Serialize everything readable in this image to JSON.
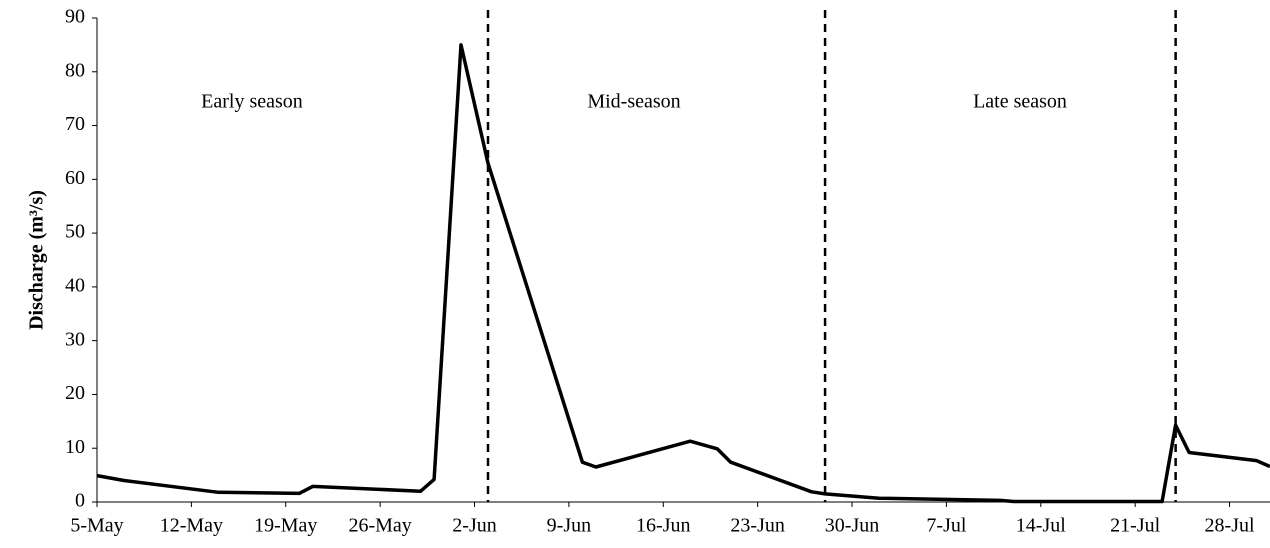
{
  "chart_data": {
    "type": "line",
    "y_label": "Discharge (m³/s)",
    "annotations": [
      "Early season",
      "Mid-season",
      "Late season"
    ],
    "boundaries": [
      "3-Jun",
      "28-Jun",
      "24-Jul"
    ],
    "x": [
      "5-May",
      "7-May",
      "14-May",
      "20-May",
      "21-May",
      "29-May",
      "30-May",
      "1-Jun",
      "3-Jun",
      "10-Jun",
      "11-Jun",
      "18-Jun",
      "20-Jun",
      "21-Jun",
      "27-Jun",
      "28-Jun",
      "2-Jul",
      "11-Jul",
      "12-Jul",
      "23-Jul",
      "24-Jul",
      "25-Jul",
      "30-Jul",
      "31-Jul"
    ],
    "values": [
      4.9,
      4.0,
      1.8,
      1.6,
      2.9,
      2.0,
      4.2,
      85,
      63,
      7.4,
      6.5,
      11.3,
      9.9,
      7.4,
      1.9,
      1.5,
      0.7,
      0.3,
      0.1,
      0.1,
      14.3,
      9.2,
      7.7,
      6.6
    ],
    "color": "#000000",
    "xlim": [
      "5-May",
      "31-Jul"
    ],
    "xticks": [
      "5-May",
      "12-May",
      "19-May",
      "26-May",
      "2-Jun",
      "9-Jun",
      "16-Jun",
      "23-Jun",
      "30-Jun",
      "7-Jul",
      "14-Jul",
      "21-Jul",
      "28-Jul"
    ],
    "ylim": [
      0,
      90
    ],
    "yticks": [
      0,
      10,
      20,
      30,
      40,
      50,
      60,
      70,
      80,
      90
    ],
    "grid": false
  }
}
